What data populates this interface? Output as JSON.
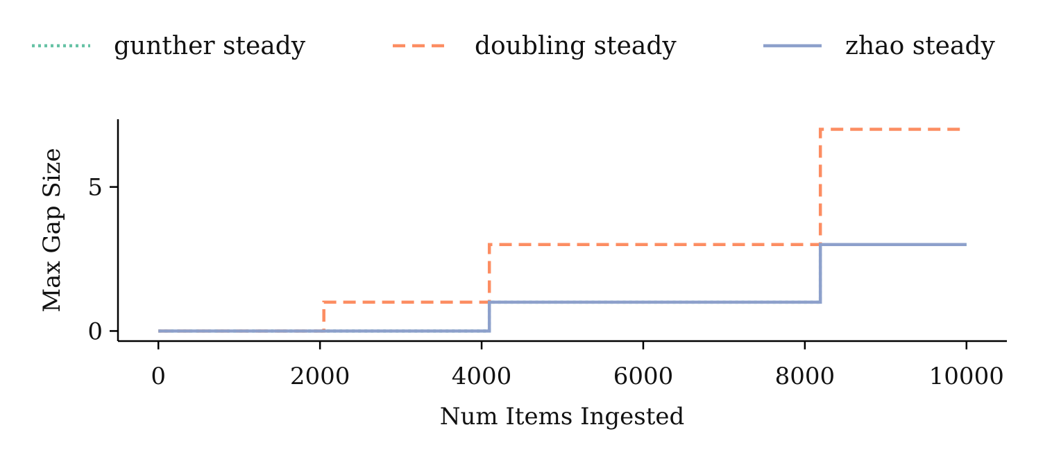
{
  "chart_data": {
    "type": "line",
    "step": true,
    "xlabel": "Num Items Ingested",
    "ylabel": "Max Gap Size",
    "xlim": [
      -500,
      10500
    ],
    "ylim": [
      -0.35,
      7.35
    ],
    "xticks": [
      0,
      2000,
      4000,
      6000,
      8000,
      10000
    ],
    "xtick_labels": [
      "0",
      "2000",
      "4000",
      "6000",
      "8000",
      "10000"
    ],
    "yticks": [
      0,
      5
    ],
    "ytick_labels": [
      "0",
      "5"
    ],
    "grid": false,
    "legend_position": "top",
    "series": [
      {
        "name": "gunther steady",
        "color": "#66c2a5",
        "style": "dotted",
        "x": [
          0,
          4096,
          4096,
          8192,
          8192,
          10000
        ],
        "y": [
          0,
          0,
          1,
          1,
          3,
          3
        ]
      },
      {
        "name": "doubling steady",
        "color": "#fc8d62",
        "style": "dashed",
        "x": [
          0,
          2048,
          2048,
          4096,
          4096,
          8192,
          8192,
          10000
        ],
        "y": [
          0,
          0,
          1,
          1,
          3,
          3,
          7,
          7
        ]
      },
      {
        "name": "zhao steady",
        "color": "#8da0cb",
        "style": "solid",
        "x": [
          0,
          4096,
          4096,
          8192,
          8192,
          10000
        ],
        "y": [
          0,
          0,
          1,
          1,
          3,
          3
        ]
      }
    ]
  }
}
